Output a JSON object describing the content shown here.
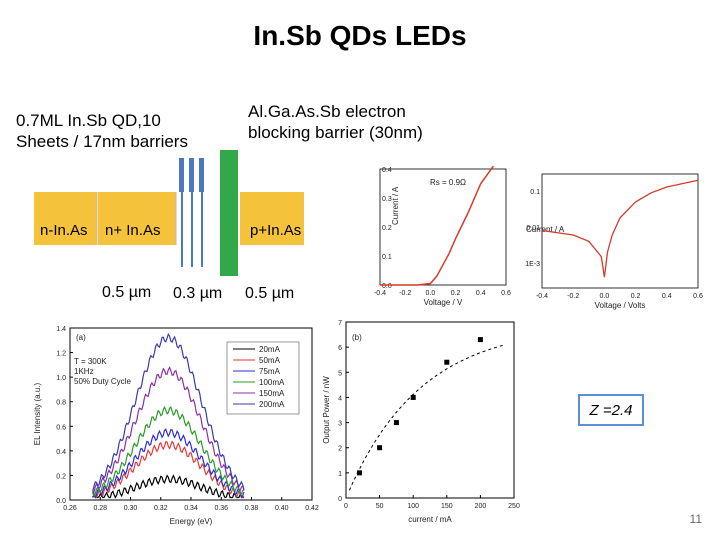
{
  "slide": {
    "title": "In.Sb QDs LEDs",
    "page_number": "11",
    "annotations": {
      "qd": "0.7ML In.Sb QD,10 Sheets / 17nm barriers",
      "barrier": "Al.Ga.As.Sb electron blocking barrier (30nm)"
    },
    "bands": {
      "n": "n-In.As",
      "nplus": "n+ In.As",
      "p": "p+In.As"
    },
    "dimensions": [
      "0.5 µm",
      "0.3 µm",
      "0.5 µm"
    ],
    "z_label": "Z =2.4"
  },
  "colors": {
    "band_fill": "#f5c33b",
    "barrier": "#31a84a",
    "qd_stripe": "#4a78c2",
    "z_border": "#5b8fd6",
    "iv_curve": "#d63b2a"
  },
  "chart_data": [
    {
      "type": "line",
      "panel": "(a)",
      "xlabel": "Energy (eV)",
      "ylabel": "EL Intensity (a.u.)",
      "xlim": [
        0.26,
        0.42
      ],
      "ylim": [
        0.0,
        1.4
      ],
      "x_ticks": [
        "0.26",
        "0.28",
        "0.30",
        "0.32",
        "0.34",
        "0.36",
        "0.38",
        "0.40",
        "0.42"
      ],
      "y_ticks": [
        "0.0",
        "0.2",
        "0.4",
        "0.6",
        "0.8",
        "1.0",
        "1.2",
        "1.4"
      ],
      "conditions": [
        "T = 300K",
        "1KHz",
        "50% Duty Cycle"
      ],
      "peak_x": 0.325,
      "width": 0.022,
      "series": [
        {
          "name": "20mA",
          "color": "#000000",
          "peak": 0.17
        },
        {
          "name": "50mA",
          "color": "#e23a3a",
          "peak": 0.45
        },
        {
          "name": "75mA",
          "color": "#2b2bd9",
          "peak": 0.55
        },
        {
          "name": "100mA",
          "color": "#2a9a2a",
          "peak": 0.73
        },
        {
          "name": "150mA",
          "color": "#8b2fa8",
          "peak": 1.05
        },
        {
          "name": "200mA",
          "color": "#3a3ab0",
          "peak": 1.32
        }
      ]
    },
    {
      "type": "scatter",
      "panel": "(b)",
      "xlabel": "current / mA",
      "ylabel": "Output Power / nW",
      "xlim": [
        0,
        250
      ],
      "ylim": [
        0,
        7
      ],
      "x_ticks": [
        "0",
        "50",
        "100",
        "150",
        "200",
        "250"
      ],
      "y_ticks": [
        "0",
        "1",
        "2",
        "3",
        "4",
        "5",
        "6",
        "7"
      ],
      "x": [
        20,
        50,
        75,
        100,
        150,
        200
      ],
      "y": [
        1.0,
        2.0,
        3.0,
        4.0,
        5.4,
        6.3
      ]
    },
    {
      "type": "line",
      "xlabel": "Voltage / V",
      "ylabel": "Current / A",
      "xlim": [
        -0.4,
        0.6
      ],
      "ylim": [
        0,
        0.4
      ],
      "x_ticks": [
        "-0.4",
        "-0.2",
        "0.0",
        "0.2",
        "0.4",
        "0.6"
      ],
      "y_ticks": [
        "0.0",
        "0.1",
        "0.2",
        "0.3",
        "0.4"
      ],
      "annotation": "Rs = 0.9Ω",
      "x": [
        -0.4,
        -0.1,
        0.0,
        0.05,
        0.1,
        0.15,
        0.2,
        0.3,
        0.4,
        0.5
      ],
      "y": [
        0.0,
        0.0,
        0.005,
        0.03,
        0.07,
        0.11,
        0.16,
        0.25,
        0.35,
        0.42
      ]
    },
    {
      "type": "line",
      "xlabel": "Voltage / Volts",
      "ylabel": "Current / A",
      "scale": "log",
      "xlim": [
        -0.4,
        0.6
      ],
      "x_ticks": [
        "-0.4",
        "-0.2",
        "0.0",
        "0.2",
        "0.4",
        "0.6"
      ],
      "y_ticks": [
        "0.1",
        "0.01",
        "1E-3"
      ],
      "x": [
        -0.4,
        -0.2,
        -0.1,
        -0.02,
        0.0,
        0.02,
        0.05,
        0.1,
        0.2,
        0.3,
        0.4,
        0.6
      ],
      "y": [
        0.008,
        0.006,
        0.004,
        0.0015,
        0.0004,
        0.002,
        0.006,
        0.018,
        0.05,
        0.09,
        0.13,
        0.2
      ]
    }
  ]
}
